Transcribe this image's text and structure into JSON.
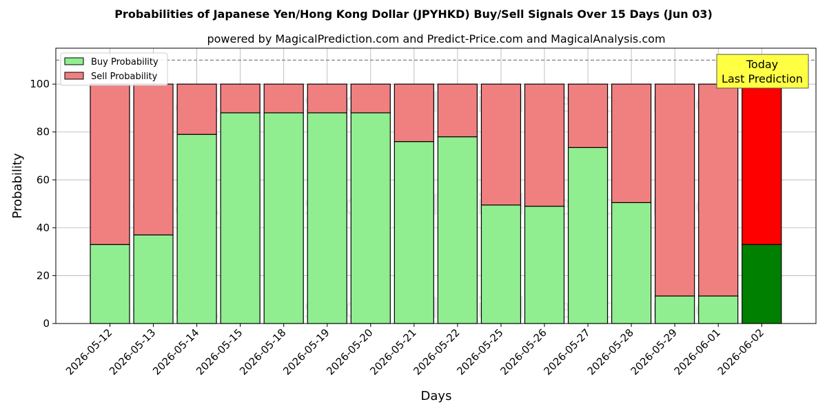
{
  "chart_data": {
    "type": "bar",
    "stacked": true,
    "title": "Probabilities of Japanese Yen/Hong Kong Dollar (JPYHKD) Buy/Sell Signals Over 15 Days (Jun 03)",
    "subtitle": "powered by MagicalPrediction.com and Predict-Price.com and MagicalAnalysis.com",
    "xlabel": "Days",
    "ylabel": "Probability",
    "ylim": [
      0,
      115
    ],
    "yticks": [
      0,
      20,
      40,
      60,
      80,
      100
    ],
    "grid": true,
    "legend_position": "top-left",
    "categories": [
      "2026-05-12",
      "2026-05-13",
      "2026-05-14",
      "2026-05-15",
      "2026-05-18",
      "2026-05-19",
      "2026-05-20",
      "2026-05-21",
      "2026-05-22",
      "2026-05-25",
      "2026-05-26",
      "2026-05-27",
      "2026-05-28",
      "2026-05-29",
      "2026-06-01",
      "2026-06-02"
    ],
    "series": [
      {
        "name": "Buy Probability",
        "color": "#90ee90",
        "values": [
          33,
          37,
          79,
          88,
          88,
          88,
          88,
          76,
          78,
          49.5,
          49,
          73.5,
          50.5,
          11.5,
          11.5,
          33
        ]
      },
      {
        "name": "Sell Probability",
        "color": "#f08080",
        "values": [
          67,
          63,
          21,
          12,
          12,
          12,
          12,
          24,
          22,
          50.5,
          51,
          26.5,
          49.5,
          88.5,
          88.5,
          67
        ]
      }
    ],
    "highlight": {
      "index": 15,
      "buy_color": "#008000",
      "sell_color": "#ff0000"
    },
    "reference_line": {
      "y": 110,
      "style": "dashed"
    },
    "annotation": {
      "line1": "Today",
      "line2": "Last Prediction",
      "background": "#ffff44"
    },
    "watermarks": [
      "MagicalAnalysis.com",
      "MagicalPrediction.com"
    ]
  }
}
